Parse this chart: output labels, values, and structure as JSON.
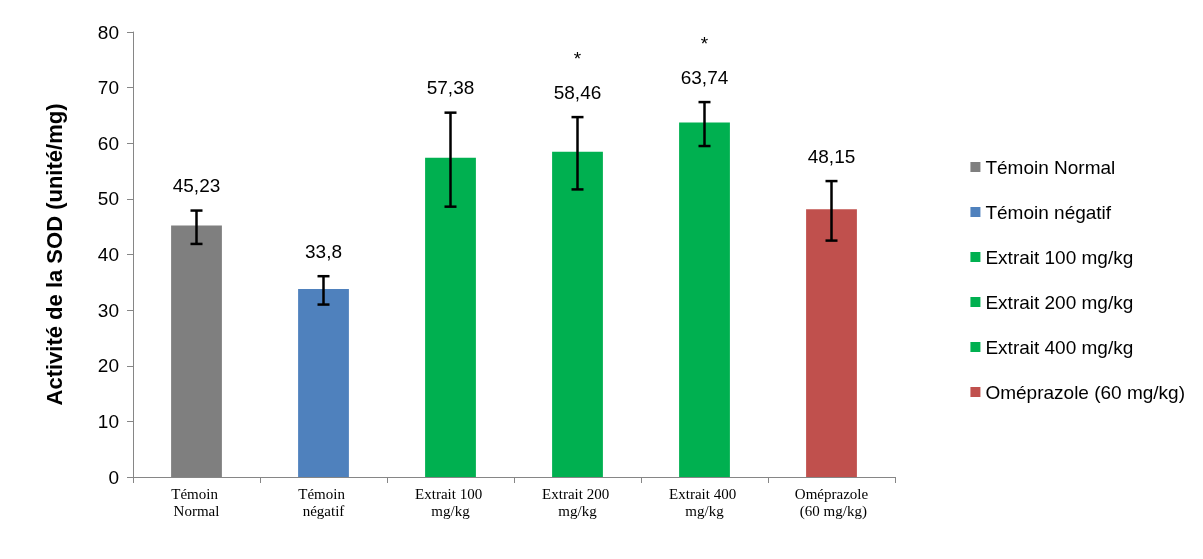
{
  "chart_data": {
    "type": "bar",
    "ylabel": "Activité de la SOD (unité/mg)",
    "categories": [
      "Témoin Normal",
      "Témoin négatif",
      "Extrait 100 mg/kg",
      "Extrait 200 mg/kg",
      "Extrait 400 mg/kg",
      "Oméprazole (60 mg/kg)"
    ],
    "series": [
      {
        "name": "Témoin Normal",
        "color": "#7f7f7f",
        "values": [
          45.23,
          null,
          null,
          null,
          null,
          null
        ],
        "value_labels": [
          "45,23",
          null,
          null,
          null,
          null,
          null
        ],
        "errors": [
          [
            41.9,
            47.9
          ],
          null,
          null,
          null,
          null,
          null
        ]
      },
      {
        "name": "Témoin négatif",
        "color": "#4f81bd",
        "values": [
          null,
          33.8,
          null,
          null,
          null,
          null
        ],
        "value_labels": [
          null,
          "33,8",
          null,
          null,
          null,
          null
        ],
        "errors": [
          null,
          [
            31.0,
            36.1
          ],
          null,
          null,
          null,
          null
        ]
      },
      {
        "name": "Extrait 100 mg/kg",
        "color": "#00b050",
        "values": [
          null,
          null,
          57.38,
          null,
          null,
          null
        ],
        "value_labels": [
          null,
          null,
          "57,38",
          null,
          null,
          null
        ],
        "errors": [
          null,
          null,
          [
            48.6,
            65.5
          ],
          null,
          null,
          null
        ]
      },
      {
        "name": "Extrait 200 mg/kg",
        "color": "#00b050",
        "values": [
          null,
          null,
          null,
          58.46,
          null,
          null
        ],
        "value_labels": [
          null,
          null,
          null,
          "*\n58,46",
          null,
          null
        ],
        "errors": [
          null,
          null,
          null,
          [
            51.7,
            64.7
          ],
          null,
          null
        ]
      },
      {
        "name": "Extrait 400 mg/kg",
        "color": "#00b050",
        "values": [
          null,
          null,
          null,
          null,
          63.74,
          null
        ],
        "value_labels": [
          null,
          null,
          null,
          null,
          "*\n63,74",
          null
        ],
        "errors": [
          null,
          null,
          null,
          null,
          [
            59.5,
            67.4
          ],
          null
        ]
      },
      {
        "name": "Oméprazole (60 mg/kg)",
        "color": "#c0504d",
        "values": [
          null,
          null,
          null,
          null,
          null,
          48.15
        ],
        "value_labels": [
          null,
          null,
          null,
          null,
          null,
          "48,15"
        ],
        "errors": [
          null,
          null,
          null,
          null,
          null,
          [
            42.5,
            53.2
          ]
        ]
      }
    ],
    "ylim": [
      0,
      80
    ],
    "yticks": [
      0,
      10,
      20,
      30,
      40,
      50,
      60,
      70,
      80
    ],
    "grid": false,
    "legend": "right"
  }
}
